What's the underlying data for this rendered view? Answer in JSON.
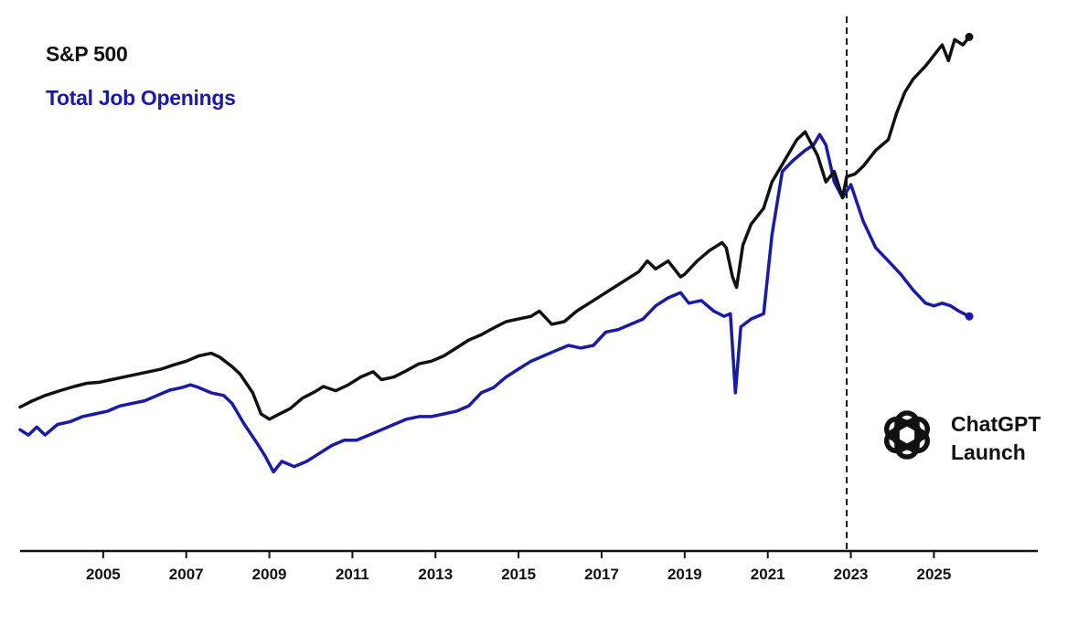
{
  "chart_data": {
    "type": "line",
    "title": "",
    "xlabel": "",
    "ylabel": "",
    "xlim": [
      2003.0,
      2027.5
    ],
    "ylim": [
      0,
      100
    ],
    "grid": false,
    "legend_placement": "top-left",
    "x_ticks": [
      "2005",
      "2007",
      "2009",
      "2011",
      "2013",
      "2015",
      "2017",
      "2019",
      "2021",
      "2023",
      "2025"
    ],
    "colors": {
      "sp500": "#111111",
      "jobs": "#1a1aa8",
      "axis": "#111111"
    },
    "series": [
      {
        "name": "S&P 500",
        "color": "#111111",
        "x": [
          2003.0,
          2003.3,
          2003.6,
          2004.0,
          2004.3,
          2004.6,
          2004.9,
          2005.2,
          2005.5,
          2005.8,
          2006.1,
          2006.4,
          2006.7,
          2007.0,
          2007.3,
          2007.6,
          2007.8,
          2008.1,
          2008.3,
          2008.6,
          2008.8,
          2009.0,
          2009.2,
          2009.5,
          2009.8,
          2010.1,
          2010.3,
          2010.6,
          2010.9,
          2011.2,
          2011.5,
          2011.7,
          2012.0,
          2012.3,
          2012.6,
          2012.9,
          2013.2,
          2013.5,
          2013.8,
          2014.1,
          2014.4,
          2014.7,
          2015.0,
          2015.3,
          2015.5,
          2015.8,
          2016.1,
          2016.4,
          2016.7,
          2017.0,
          2017.3,
          2017.6,
          2017.9,
          2018.1,
          2018.3,
          2018.6,
          2018.9,
          2019.0,
          2019.3,
          2019.6,
          2019.9,
          2020.0,
          2020.15,
          2020.25,
          2020.4,
          2020.6,
          2020.9,
          2021.1,
          2021.4,
          2021.7,
          2021.9,
          2022.0,
          2022.2,
          2022.4,
          2022.6,
          2022.8,
          2022.9,
          2023.1,
          2023.3,
          2023.6,
          2023.9,
          2024.1,
          2024.3,
          2024.5,
          2024.8,
          2025.0,
          2025.2,
          2025.35,
          2025.5,
          2025.7,
          2025.85
        ],
        "values": [
          27.3,
          28.5,
          29.5,
          30.5,
          31.2,
          31.8,
          32.0,
          32.5,
          33.0,
          33.5,
          34.0,
          34.5,
          35.3,
          36.0,
          37.0,
          37.5,
          36.8,
          35.0,
          33.5,
          30.0,
          26.0,
          25.0,
          25.8,
          27.0,
          29.0,
          30.2,
          31.2,
          30.4,
          31.5,
          33.0,
          34.0,
          32.5,
          33.0,
          34.2,
          35.5,
          36.0,
          37.0,
          38.5,
          40.0,
          41.0,
          42.3,
          43.5,
          44.0,
          44.5,
          45.5,
          43.0,
          43.5,
          45.5,
          47.0,
          48.5,
          50.0,
          51.5,
          53.0,
          55.0,
          53.5,
          55.0,
          52.0,
          52.5,
          55.0,
          57.0,
          58.5,
          57.5,
          52.0,
          50.0,
          58.0,
          62.0,
          65.0,
          70.0,
          74.0,
          78.0,
          79.5,
          78.0,
          75.0,
          70.0,
          72.0,
          67.0,
          71.0,
          71.5,
          73.0,
          76.0,
          78.0,
          83.0,
          87.0,
          89.5,
          92.0,
          94.0,
          96.0,
          93.0,
          97.0,
          96.0,
          97.5
        ]
      },
      {
        "name": "Total Job Openings",
        "color": "#1a1aa8",
        "x": [
          2003.0,
          2003.2,
          2003.4,
          2003.6,
          2003.9,
          2004.2,
          2004.5,
          2004.8,
          2005.1,
          2005.4,
          2005.7,
          2006.0,
          2006.3,
          2006.6,
          2006.9,
          2007.1,
          2007.3,
          2007.6,
          2007.9,
          2008.1,
          2008.4,
          2008.7,
          2008.9,
          2009.1,
          2009.3,
          2009.6,
          2009.9,
          2010.2,
          2010.5,
          2010.8,
          2011.1,
          2011.4,
          2011.7,
          2012.0,
          2012.3,
          2012.6,
          2012.9,
          2013.2,
          2013.5,
          2013.8,
          2014.1,
          2014.4,
          2014.7,
          2015.0,
          2015.3,
          2015.6,
          2015.9,
          2016.2,
          2016.5,
          2016.8,
          2017.1,
          2017.4,
          2017.7,
          2018.0,
          2018.3,
          2018.6,
          2018.9,
          2019.1,
          2019.4,
          2019.7,
          2019.95,
          2020.1,
          2020.22,
          2020.35,
          2020.6,
          2020.9,
          2021.1,
          2021.35,
          2021.6,
          2021.9,
          2022.1,
          2022.25,
          2022.4,
          2022.6,
          2022.8,
          2023.0,
          2023.3,
          2023.6,
          2023.9,
          2024.2,
          2024.5,
          2024.8,
          2025.0,
          2025.2,
          2025.4,
          2025.6,
          2025.85
        ],
        "values": [
          23.0,
          22.0,
          23.5,
          22.0,
          24.0,
          24.5,
          25.5,
          26.0,
          26.5,
          27.5,
          28.0,
          28.5,
          29.5,
          30.5,
          31.0,
          31.5,
          31.0,
          30.0,
          29.5,
          28.0,
          24.0,
          20.5,
          18.0,
          15.0,
          17.0,
          16.0,
          17.0,
          18.5,
          20.0,
          21.0,
          21.0,
          22.0,
          23.0,
          24.0,
          25.0,
          25.5,
          25.5,
          26.0,
          26.5,
          27.5,
          30.0,
          31.0,
          33.0,
          34.5,
          36.0,
          37.0,
          38.0,
          39.0,
          38.5,
          39.0,
          41.5,
          42.0,
          43.0,
          44.0,
          46.5,
          48.0,
          49.0,
          47.0,
          47.5,
          45.5,
          44.5,
          45.0,
          30.0,
          42.5,
          44.0,
          45.0,
          60.0,
          72.0,
          74.0,
          76.0,
          77.0,
          79.0,
          77.0,
          70.0,
          67.0,
          69.5,
          62.5,
          57.5,
          55.0,
          52.5,
          49.5,
          47.0,
          46.5,
          47.0,
          46.5,
          45.5,
          44.5
        ]
      }
    ],
    "annotations": [
      {
        "x": 2022.9,
        "type": "vertical-dashed-line",
        "text": "ChatGPT Launch",
        "icon": "openai-logo-icon"
      }
    ]
  },
  "legend": {
    "sp500": "S&P 500",
    "jobs": "Total Job Openings"
  },
  "annotation": {
    "line1": "ChatGPT",
    "line2": "Launch"
  }
}
